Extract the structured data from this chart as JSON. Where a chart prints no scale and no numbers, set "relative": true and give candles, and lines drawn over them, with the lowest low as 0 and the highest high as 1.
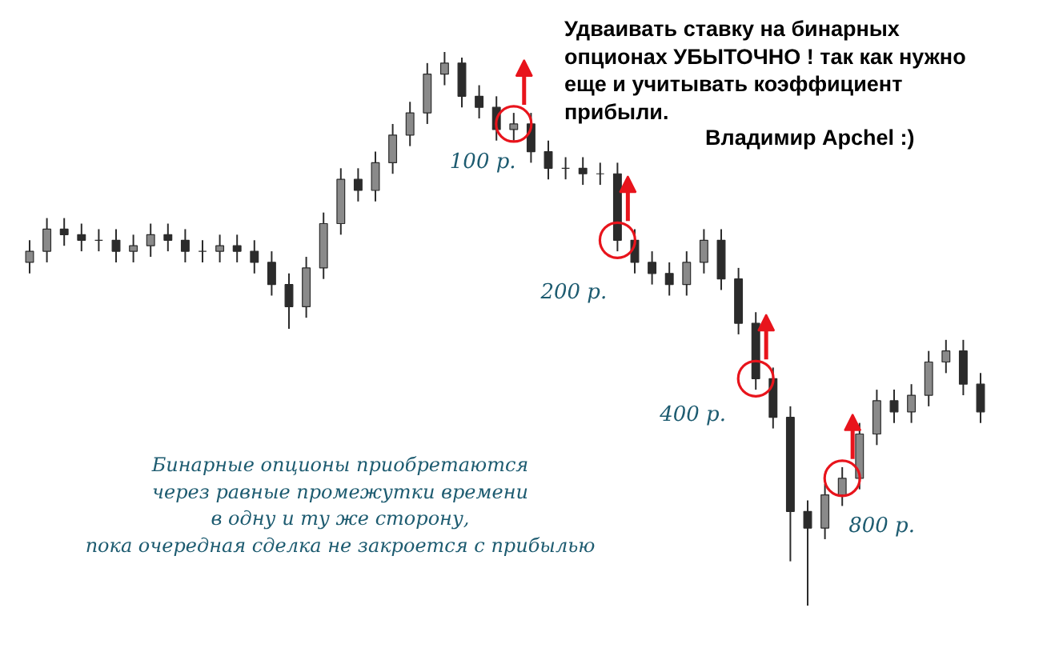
{
  "chart_data": {
    "type": "candlestick",
    "relative": true,
    "title": "Удваивать ставку на бинарных опционах УБЫТОЧНО ! так как нужно еще и учитывать коэффициент прибыли.",
    "color": "#2b2b2b",
    "categories": [
      null,
      null,
      null,
      null,
      null,
      null,
      null,
      null,
      null,
      null,
      null,
      null,
      null,
      null,
      null,
      null,
      null,
      null,
      null,
      null,
      null,
      null,
      null,
      null,
      null,
      null,
      null,
      null,
      null,
      null,
      null,
      null,
      null,
      null,
      null,
      null,
      null,
      null,
      null,
      null,
      null,
      null,
      null,
      null,
      null,
      null,
      null,
      null,
      null,
      null,
      null,
      null,
      null,
      null,
      null,
      null
    ],
    "ohlc": [
      [
        0.62,
        0.66,
        0.6,
        0.64
      ],
      [
        0.64,
        0.7,
        0.62,
        0.68
      ],
      [
        0.68,
        0.7,
        0.65,
        0.67
      ],
      [
        0.67,
        0.69,
        0.64,
        0.66
      ],
      [
        0.66,
        0.68,
        0.64,
        0.66
      ],
      [
        0.66,
        0.68,
        0.62,
        0.64
      ],
      [
        0.64,
        0.67,
        0.62,
        0.65
      ],
      [
        0.65,
        0.69,
        0.63,
        0.67
      ],
      [
        0.67,
        0.69,
        0.64,
        0.66
      ],
      [
        0.66,
        0.68,
        0.62,
        0.64
      ],
      [
        0.64,
        0.66,
        0.62,
        0.64
      ],
      [
        0.64,
        0.67,
        0.62,
        0.65
      ],
      [
        0.65,
        0.67,
        0.62,
        0.64
      ],
      [
        0.64,
        0.66,
        0.6,
        0.62
      ],
      [
        0.62,
        0.64,
        0.56,
        0.58
      ],
      [
        0.58,
        0.6,
        0.5,
        0.54
      ],
      [
        0.54,
        0.63,
        0.52,
        0.61
      ],
      [
        0.61,
        0.71,
        0.59,
        0.69
      ],
      [
        0.69,
        0.79,
        0.67,
        0.77
      ],
      [
        0.77,
        0.79,
        0.73,
        0.75
      ],
      [
        0.75,
        0.82,
        0.73,
        0.8
      ],
      [
        0.8,
        0.87,
        0.78,
        0.85
      ],
      [
        0.85,
        0.91,
        0.83,
        0.89
      ],
      [
        0.89,
        0.98,
        0.87,
        0.96
      ],
      [
        0.96,
        1.0,
        0.94,
        0.98
      ],
      [
        0.98,
        0.99,
        0.9,
        0.92
      ],
      [
        0.92,
        0.94,
        0.88,
        0.9
      ],
      [
        0.9,
        0.92,
        0.84,
        0.86
      ],
      [
        0.86,
        0.89,
        0.84,
        0.87
      ],
      [
        0.87,
        0.89,
        0.8,
        0.82
      ],
      [
        0.82,
        0.84,
        0.77,
        0.79
      ],
      [
        0.79,
        0.81,
        0.77,
        0.79
      ],
      [
        0.79,
        0.81,
        0.76,
        0.78
      ],
      [
        0.78,
        0.8,
        0.76,
        0.78
      ],
      [
        0.78,
        0.8,
        0.64,
        0.66
      ],
      [
        0.66,
        0.68,
        0.6,
        0.62
      ],
      [
        0.62,
        0.64,
        0.58,
        0.6
      ],
      [
        0.6,
        0.62,
        0.56,
        0.58
      ],
      [
        0.58,
        0.64,
        0.56,
        0.62
      ],
      [
        0.62,
        0.68,
        0.6,
        0.66
      ],
      [
        0.66,
        0.68,
        0.57,
        0.59
      ],
      [
        0.59,
        0.61,
        0.49,
        0.51
      ],
      [
        0.51,
        0.53,
        0.39,
        0.41
      ],
      [
        0.41,
        0.43,
        0.32,
        0.34
      ],
      [
        0.34,
        0.36,
        0.08,
        0.17
      ],
      [
        0.17,
        0.19,
        0.0,
        0.14
      ],
      [
        0.14,
        0.22,
        0.12,
        0.2
      ],
      [
        0.2,
        0.25,
        0.18,
        0.23
      ],
      [
        0.23,
        0.33,
        0.21,
        0.31
      ],
      [
        0.31,
        0.39,
        0.29,
        0.37
      ],
      [
        0.37,
        0.39,
        0.33,
        0.35
      ],
      [
        0.35,
        0.4,
        0.33,
        0.38
      ],
      [
        0.38,
        0.46,
        0.36,
        0.44
      ],
      [
        0.44,
        0.48,
        0.42,
        0.46
      ],
      [
        0.46,
        0.48,
        0.38,
        0.4
      ],
      [
        0.4,
        0.42,
        0.33,
        0.35
      ]
    ],
    "series": [
      {
        "type": "scatter",
        "color": "#e8141c",
        "values": [
          null,
          null,
          null,
          null,
          null,
          null,
          null,
          null,
          null,
          null,
          null,
          null,
          null,
          null,
          null,
          null,
          null,
          null,
          null,
          null,
          null,
          null,
          null,
          null,
          null,
          null,
          null,
          null,
          0.87,
          null,
          null,
          null,
          null,
          null,
          0.66,
          null,
          null,
          null,
          null,
          null,
          null,
          null,
          0.41,
          null,
          null,
          null,
          null,
          0.23,
          null,
          null,
          null,
          null,
          null,
          null,
          null,
          null
        ]
      }
    ],
    "marker": "circle",
    "annotations": [
      "Владимир Apchel :)",
      "Бинарные опционы приобретаются\nчерез равные промежутки времени\nв одну и ту же сторону,\nпока очередная сделка не закроется с прибылью",
      "100 р.",
      "200 р.",
      "400 р.",
      "800 р."
    ]
  }
}
